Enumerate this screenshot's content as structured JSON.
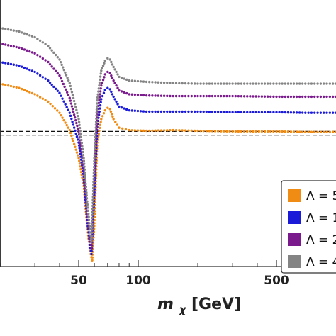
{
  "chart_data": {
    "type": "scatter",
    "xscale": "log",
    "xlim": [
      20,
      1000
    ],
    "ylim": [
      -3.3,
      1.0
    ],
    "x_ticks": [
      {
        "value": 50,
        "label": "50"
      },
      {
        "value": 100,
        "label": "100"
      },
      {
        "value": 500,
        "label": "500"
      }
    ],
    "xlabel": {
      "symbol": "m",
      "subscript": "χ",
      "unit": " [GeV]"
    },
    "ylabel": "",
    "grid": false,
    "legend_position": "right",
    "reference_lines": [
      -1.12,
      -1.18
    ],
    "series": [
      {
        "label": "Λ = 5",
        "color": "#f08c14",
        "points": [
          [
            20,
            -0.35
          ],
          [
            25,
            -0.42
          ],
          [
            30,
            -0.52
          ],
          [
            35,
            -0.64
          ],
          [
            40,
            -0.82
          ],
          [
            45,
            -1.1
          ],
          [
            50,
            -1.55
          ],
          [
            53,
            -2.0
          ],
          [
            55,
            -2.6
          ],
          [
            57,
            -3.05
          ],
          [
            58.5,
            -3.2
          ],
          [
            60,
            -2.6
          ],
          [
            62,
            -1.3
          ],
          [
            65,
            -0.92
          ],
          [
            68,
            -0.78
          ],
          [
            70,
            -0.74
          ],
          [
            72,
            -0.76
          ],
          [
            75,
            -0.92
          ],
          [
            80,
            -1.06
          ],
          [
            90,
            -1.1
          ],
          [
            110,
            -1.11
          ],
          [
            150,
            -1.1
          ],
          [
            200,
            -1.11
          ],
          [
            300,
            -1.12
          ],
          [
            500,
            -1.12
          ],
          [
            700,
            -1.13
          ],
          [
            1000,
            -1.13
          ]
        ]
      },
      {
        "label": "Λ = 1",
        "color": "#1a1ad8",
        "points": [
          [
            20,
            -0.0
          ],
          [
            25,
            -0.06
          ],
          [
            30,
            -0.16
          ],
          [
            35,
            -0.3
          ],
          [
            40,
            -0.5
          ],
          [
            45,
            -0.82
          ],
          [
            50,
            -1.3
          ],
          [
            53,
            -1.85
          ],
          [
            55,
            -2.5
          ],
          [
            57,
            -2.95
          ],
          [
            58,
            -3.1
          ],
          [
            60,
            -2.1
          ],
          [
            62,
            -1.05
          ],
          [
            65,
            -0.6
          ],
          [
            68,
            -0.45
          ],
          [
            70,
            -0.42
          ],
          [
            72,
            -0.44
          ],
          [
            75,
            -0.56
          ],
          [
            80,
            -0.72
          ],
          [
            90,
            -0.78
          ],
          [
            110,
            -0.8
          ],
          [
            150,
            -0.8
          ],
          [
            200,
            -0.8
          ],
          [
            300,
            -0.81
          ],
          [
            500,
            -0.81
          ],
          [
            700,
            -0.82
          ],
          [
            1000,
            -0.82
          ]
        ]
      },
      {
        "label": "Λ = 2",
        "color": "#7a1a8c",
        "points": [
          [
            20,
            0.3
          ],
          [
            25,
            0.23
          ],
          [
            30,
            0.14
          ],
          [
            35,
            0.0
          ],
          [
            40,
            -0.22
          ],
          [
            45,
            -0.58
          ],
          [
            50,
            -1.12
          ],
          [
            53,
            -1.7
          ],
          [
            55,
            -2.35
          ],
          [
            57,
            -2.8
          ],
          [
            58,
            -3.0
          ],
          [
            60,
            -1.8
          ],
          [
            62,
            -0.85
          ],
          [
            65,
            -0.38
          ],
          [
            68,
            -0.2
          ],
          [
            70,
            -0.16
          ],
          [
            72,
            -0.18
          ],
          [
            75,
            -0.3
          ],
          [
            80,
            -0.46
          ],
          [
            90,
            -0.52
          ],
          [
            110,
            -0.54
          ],
          [
            150,
            -0.55
          ],
          [
            200,
            -0.55
          ],
          [
            300,
            -0.55
          ],
          [
            500,
            -0.56
          ],
          [
            700,
            -0.56
          ],
          [
            1000,
            -0.56
          ]
        ]
      },
      {
        "label": "Λ = 4",
        "color": "#848484",
        "points": [
          [
            20,
            0.55
          ],
          [
            25,
            0.49
          ],
          [
            30,
            0.4
          ],
          [
            35,
            0.26
          ],
          [
            40,
            0.04
          ],
          [
            45,
            -0.34
          ],
          [
            50,
            -0.92
          ],
          [
            53,
            -1.55
          ],
          [
            55,
            -2.2
          ],
          [
            57,
            -2.7
          ],
          [
            58,
            -2.9
          ],
          [
            60,
            -1.55
          ],
          [
            62,
            -0.62
          ],
          [
            65,
            -0.14
          ],
          [
            68,
            0.02
          ],
          [
            70,
            0.06
          ],
          [
            72,
            0.04
          ],
          [
            75,
            -0.08
          ],
          [
            80,
            -0.24
          ],
          [
            90,
            -0.3
          ],
          [
            110,
            -0.32
          ],
          [
            150,
            -0.34
          ],
          [
            200,
            -0.35
          ],
          [
            300,
            -0.35
          ],
          [
            500,
            -0.35
          ],
          [
            700,
            -0.35
          ],
          [
            1000,
            -0.35
          ]
        ]
      }
    ]
  }
}
